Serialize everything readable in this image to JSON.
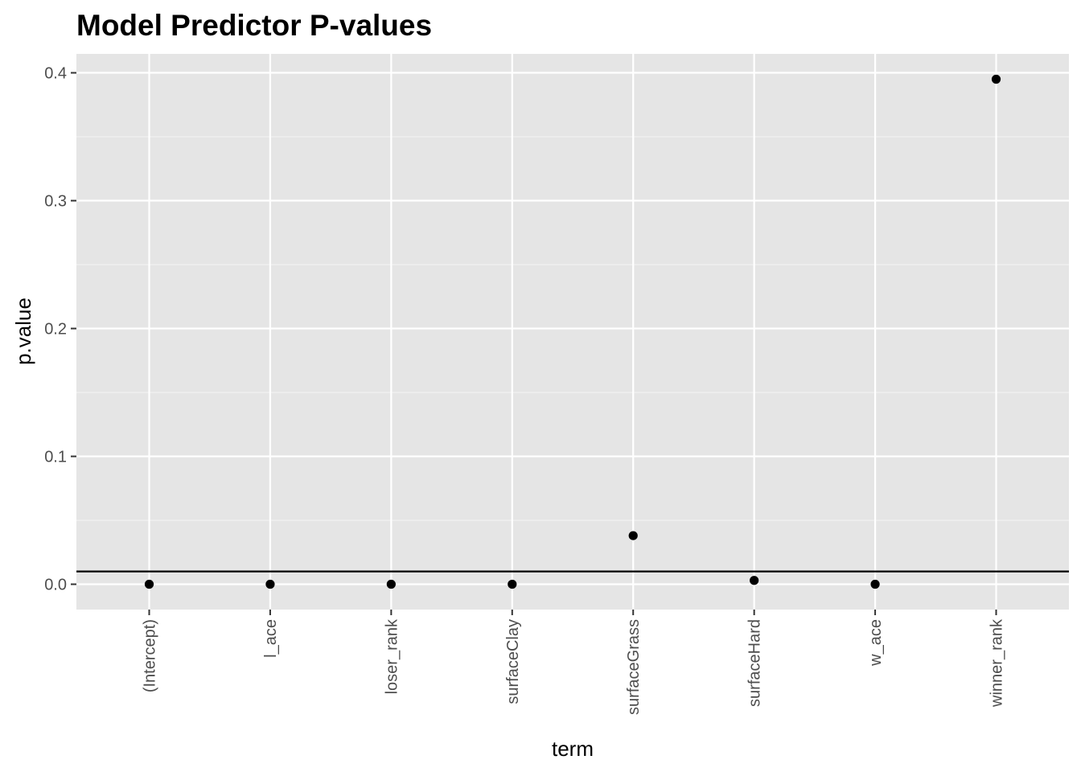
{
  "chart_data": {
    "type": "scatter",
    "title": "Model Predictor P-values",
    "xlabel": "term",
    "ylabel": "p.value",
    "categories": [
      "(Intercept)",
      "l_ace",
      "loser_rank",
      "surfaceClay",
      "surfaceGrass",
      "surfaceHard",
      "w_ace",
      "winner_rank"
    ],
    "series": [
      {
        "values": [
          0.0,
          0.0,
          0.0,
          0.0,
          0.038,
          0.003,
          0.0,
          0.395
        ]
      }
    ],
    "yticks": [
      0.0,
      0.1,
      0.2,
      0.3,
      0.4
    ],
    "ytick_labels": [
      "0.0",
      "0.1",
      "0.2",
      "0.3",
      "0.4"
    ],
    "ylim": [
      -0.0198,
      0.4148
    ],
    "reference_line": {
      "y": 0.01
    },
    "grid": true,
    "legend": "none",
    "colors": {
      "panel_background": "#e5e5e5",
      "grid_major": "#ffffff",
      "grid_minor": "#f2f2f2",
      "points": "#000000",
      "reference_line": "#000000",
      "ticks": "#333333",
      "tick_labels": "#4d4d4d"
    }
  }
}
